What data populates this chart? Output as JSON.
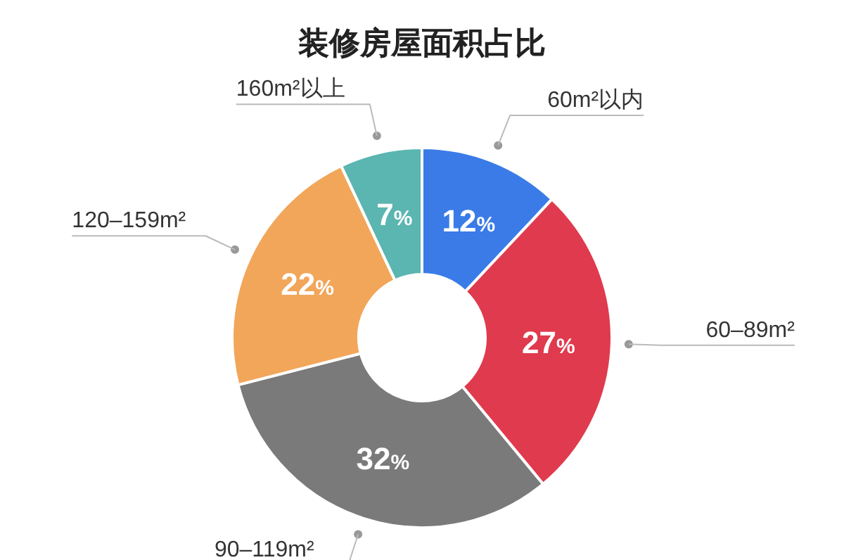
{
  "chart_data": {
    "type": "donut",
    "title": "装修房屋面积占比",
    "categories": [
      "60m²以内",
      "60–89m²",
      "90–119m²",
      "120–159m²",
      "160m²以上"
    ],
    "values": [
      12,
      27,
      32,
      22,
      7
    ],
    "colors": [
      "#3a7be8",
      "#e03a4e",
      "#7a7a7a",
      "#f2a65a",
      "#5bb5b0"
    ],
    "value_labels": [
      "12%",
      "27%",
      "32%",
      "22%",
      "7%"
    ]
  }
}
